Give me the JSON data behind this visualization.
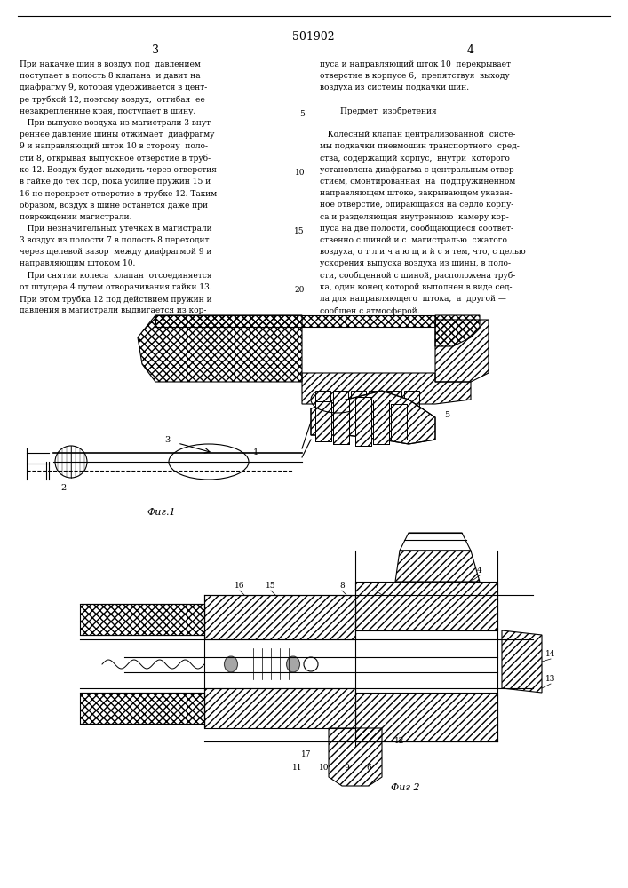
{
  "patent_number": "501902",
  "col_left": "3",
  "col_right": "4",
  "line_numbers": [
    5,
    10,
    15,
    20
  ],
  "text_left": [
    "При накачке шин в воздух под  давлением",
    "поступает в полость 8 клапана  и давит на",
    "диафрагму 9, которая удерживается в цент-",
    "ре трубкой 12, поэтому воздух,  отгибая  ее",
    "незакрепленные края, поступает в шину.",
    "   При выпуске воздуха из магистрали 3 внут-",
    "реннее давление шины отжимает  диафрагму",
    "9 и направляющий шток 10 в сторону  поло-",
    "сти 8, открывая выпускное отверстие в труб-",
    "ке 12. Воздух будет выходить через отверстия",
    "в гайке до тех пор, пока усилие пружин 15 и",
    "16 не перекроет отверстие в трубке 12. Таким",
    "образом, воздух в шине останется даже при",
    "повреждении магистрали.",
    "   При незначительных утечках в магистрали",
    "3 воздух из полости 7 в полость 8 переходит",
    "через щелевой зазор  между диафрагмой 9 и",
    "направляющим штоком 10.",
    "   При снятии колеса  клапан  отсоединяется",
    "от штуцера 4 путем отворачивания гайки 13.",
    "При этом трубка 12 под действием пружин и",
    "давления в магистрали выдвигается из кор-"
  ],
  "text_right": [
    "пуса и направляющий шток 10  перекрывает",
    "отверстие в корпусе 6,  препятствуя  выходу",
    "воздуха из системы подкачки шин.",
    "",
    "        Предмет  изобретения",
    "",
    "   Колесный клапан централизованной  систе-",
    "мы подкачки пневмошин транспортного  сред-",
    "ства, содержащий корпус,  внутри  которого",
    "установлена диафрагма с центральным отвер-",
    "стием, смонтированная  на  подпружиненном",
    "направляющем штоке, закрывающем указан-",
    "ное отверстие, опирающаяся на седло корпу-",
    "са и разделяющая внутреннюю  камеру кор-",
    "пуса на две полости, сообщающиеся соответ-",
    "ственно с шиной и с  магистралью  сжатого",
    "воздуха, о т л и ч а ю щ и й с я тем, что, с целью",
    "ускорения выпуска воздуха из шины, в поло-",
    "сти, сообщенной с шиной, расположена труб-",
    "ка, один конец которой выполнен в виде сед-",
    "ла для направляющего  штока,  а  другой —",
    "сообщен с атмосферой."
  ],
  "fig1_label": "Фиг.1",
  "fig2_label": "Фиг 2",
  "background_color": "#ffffff",
  "text_color": "#000000",
  "line_color": "#000000"
}
